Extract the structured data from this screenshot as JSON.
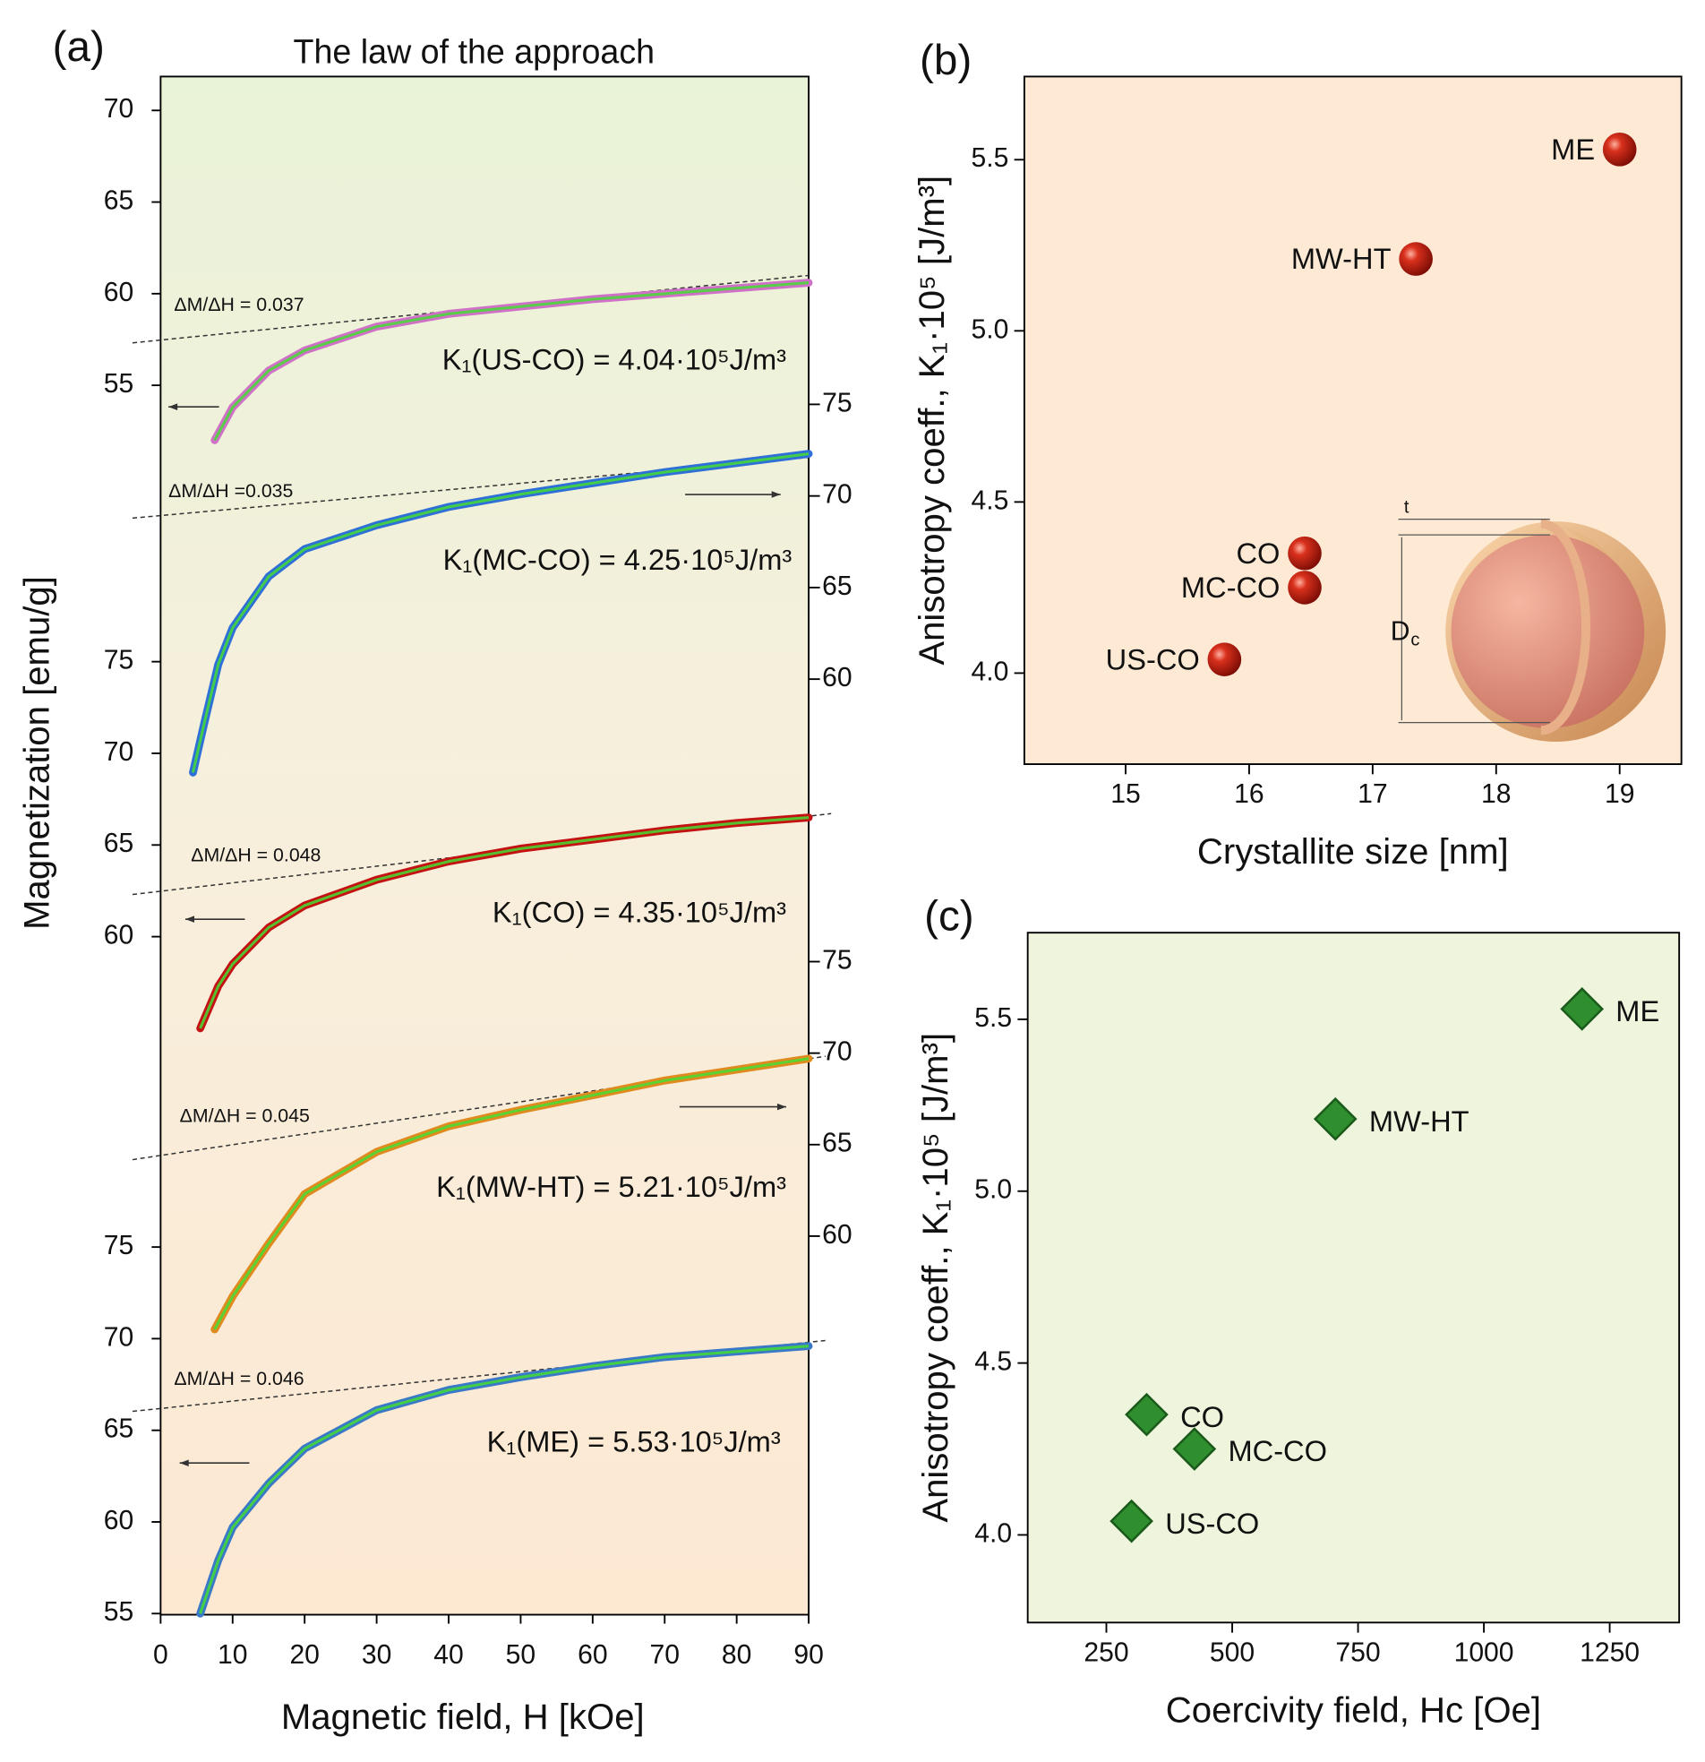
{
  "chart_data": [
    {
      "type": "multi_line",
      "panel_label": "(a)",
      "title": "The law of the approach",
      "x_label": "Magnetic field, H [kOe]",
      "y_label": "Magnetization [emu/g]",
      "xlim": [
        0,
        90
      ],
      "xticks": [
        0,
        10,
        20,
        30,
        40,
        50,
        60,
        70,
        80,
        90
      ],
      "series": [
        {
          "color": "#d070c8",
          "axis": "y",
          "ylim": [
            51.8,
            71.85
          ],
          "yticks": [
            70,
            65,
            60,
            55
          ],
          "x": [
            7.5,
            10,
            15,
            20,
            30,
            40,
            50,
            60,
            70,
            80,
            90
          ],
          "values": [
            52.0,
            53.8,
            55.8,
            56.9,
            58.2,
            58.9,
            59.3,
            59.7,
            60.0,
            60.3,
            60.6
          ],
          "slope_label": "ΔM/ΔH = 0.037",
          "annotation": "K₁(US-CO) = 4.04·10⁵J/m³"
        },
        {
          "color": "#2e6fd8",
          "axis": "y2",
          "ylim": [
            54.5,
            75.6
          ],
          "yticks": [
            75,
            70,
            65,
            60
          ],
          "x": [
            4.5,
            6,
            8,
            10,
            15,
            20,
            30,
            40,
            50,
            60,
            70,
            80,
            90
          ],
          "values": [
            54.9,
            57.5,
            60.8,
            62.8,
            65.6,
            67.1,
            68.4,
            69.4,
            70.1,
            70.7,
            71.3,
            71.8,
            72.3
          ],
          "slope_label": "ΔM/ΔH =0.035",
          "annotation": "K₁(MC-CO) = 4.25·10⁵J/m³"
        },
        {
          "color": "#c41212",
          "axis": "y",
          "ylim": [
            54.7,
            75.6
          ],
          "yticks": [
            75,
            70,
            65,
            60
          ],
          "x": [
            5.5,
            8,
            10,
            15,
            20,
            30,
            40,
            50,
            60,
            70,
            80,
            90
          ],
          "values": [
            55.0,
            57.3,
            58.5,
            60.5,
            61.7,
            63.1,
            64.1,
            64.8,
            65.3,
            65.8,
            66.2,
            66.5
          ],
          "slope_label": "ΔM/ΔH = 0.048",
          "annotation": "K₁(CO) = 4.35·10⁵J/m³"
        },
        {
          "color": "#e08a20",
          "axis": "y2",
          "ylim": [
            54.6,
            75.6
          ],
          "yticks": [
            75,
            70,
            65,
            60
          ],
          "x": [
            7.5,
            10,
            15,
            20,
            30,
            40,
            50,
            60,
            70,
            80,
            90
          ],
          "values": [
            54.9,
            56.7,
            59.6,
            62.3,
            64.6,
            66.0,
            66.9,
            67.7,
            68.5,
            69.1,
            69.7
          ],
          "slope_label": "ΔM/ΔH = 0.045",
          "annotation": "K₁(MW-HT) = 5.21·10⁵J/m³"
        },
        {
          "color": "#3a78c8",
          "axis": "y",
          "ylim": [
            55,
            75.6
          ],
          "yticks": [
            75,
            70,
            65,
            60,
            55
          ],
          "x": [
            5.5,
            8,
            10,
            15,
            20,
            30,
            40,
            50,
            60,
            70,
            80,
            90
          ],
          "values": [
            55.0,
            57.9,
            59.7,
            62.1,
            64.0,
            66.1,
            67.2,
            67.9,
            68.5,
            69.0,
            69.3,
            69.6
          ],
          "slope_label": "ΔM/ΔH = 0.046",
          "annotation": "K₁(ME) = 5.53·10⁵J/m³"
        }
      ]
    },
    {
      "type": "scatter",
      "panel_label": "(b)",
      "x_label": "Crystallite size [nm]",
      "y_label": "Anisotropy coeff., K₁·10⁵ [J/m³]",
      "categories": [
        "ME",
        "MW-HT",
        "CO",
        "MC-CO",
        "US-CO"
      ],
      "x": [
        19.0,
        17.35,
        16.45,
        16.45,
        15.8
      ],
      "values": [
        5.53,
        5.21,
        4.35,
        4.25,
        4.04
      ],
      "color": "#b81c10",
      "xlim": [
        14.18,
        19.5
      ],
      "xticks": [
        15,
        16,
        17,
        18,
        19
      ],
      "ylim": [
        3.734,
        5.743
      ],
      "yticks": [
        {
          "value": 4,
          "label": "4.0"
        },
        4.5,
        {
          "value": 5,
          "label": "5.0"
        },
        5.5
      ],
      "inset_labels": [
        "t",
        "D",
        "c"
      ]
    },
    {
      "type": "scatter",
      "panel_label": "(c)",
      "x_label": "Coercivity field, Hc [Oe]",
      "y_label": "Anisotropy coeff., K₁·10⁵ [J/m³]",
      "categories": [
        "ME",
        "MW-HT",
        "CO",
        "MC-CO",
        "US-CO"
      ],
      "x": [
        1195,
        705,
        330,
        425,
        300
      ],
      "values": [
        5.53,
        5.21,
        4.35,
        4.25,
        4.04
      ],
      "color": "#2f8f2f",
      "xlim": [
        93.75,
        1388
      ],
      "xticks": [
        250,
        500,
        750,
        1000,
        1250
      ],
      "ylim": [
        3.745,
        5.752
      ],
      "yticks": [
        {
          "value": 4,
          "label": "4.0"
        },
        4.5,
        {
          "value": 5,
          "label": "5.0"
        },
        5.5
      ]
    }
  ]
}
